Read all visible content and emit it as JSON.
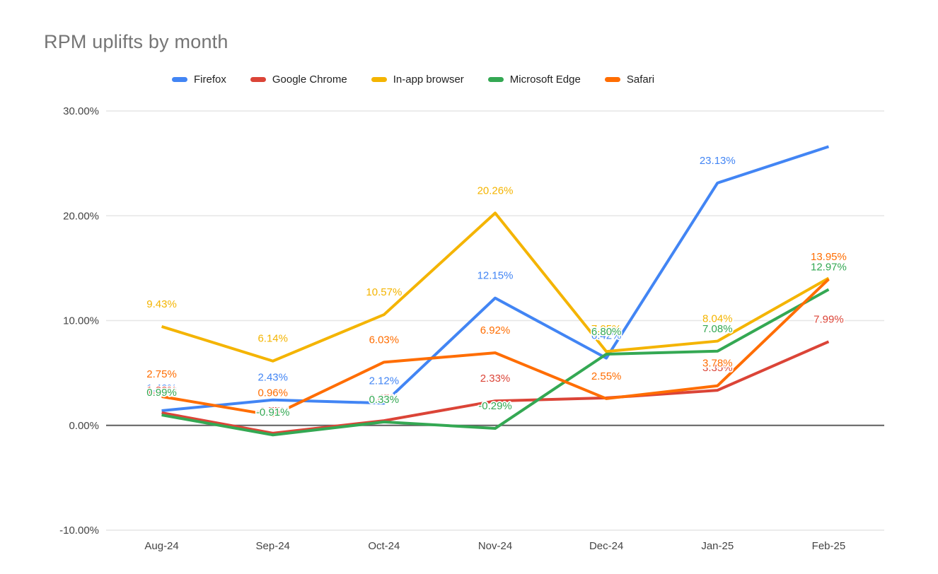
{
  "chart_data": {
    "type": "line",
    "title": "RPM uplifts by month",
    "categories": [
      "Aug-24",
      "Sep-24",
      "Oct-24",
      "Nov-24",
      "Dec-24",
      "Jan-25",
      "Feb-25"
    ],
    "series": [
      {
        "name": "Firefox",
        "color": "#4285F4",
        "values": [
          1.4,
          2.43,
          2.12,
          12.15,
          6.42,
          23.13,
          26.6
        ],
        "labels": [
          "1.40%",
          "2.43%",
          "2.12%",
          "12.15%",
          "6.42%",
          "23.13%",
          ""
        ]
      },
      {
        "name": "Google Chrome",
        "color": "#DB4437",
        "values": [
          1.2,
          -0.75,
          0.45,
          2.33,
          2.62,
          3.35,
          7.99
        ],
        "labels": [
          "1.20%",
          "-0.75%",
          "0.45%",
          "2.33%",
          "2.62%",
          "3.35%",
          "7.99%"
        ]
      },
      {
        "name": "In-app browser",
        "color": "#F4B400",
        "values": [
          9.43,
          6.14,
          10.57,
          20.26,
          7.05,
          8.04,
          14.05
        ],
        "labels": [
          "9.43%",
          "6.14%",
          "10.57%",
          "20.26%",
          "7.05%",
          "8.04%",
          "14.05%"
        ]
      },
      {
        "name": "Microsoft Edge",
        "color": "#34A853",
        "values": [
          0.99,
          -0.91,
          0.33,
          -0.29,
          6.8,
          7.08,
          12.97
        ],
        "labels": [
          "0.99%",
          "-0.91%",
          "0.33%",
          "-0.29%",
          "6.80%",
          "7.08%",
          "12.97%"
        ]
      },
      {
        "name": "Safari",
        "color": "#FF6D01",
        "values": [
          2.75,
          0.96,
          6.03,
          6.92,
          2.55,
          3.78,
          13.95
        ],
        "labels": [
          "2.75%",
          "0.96%",
          "6.03%",
          "6.92%",
          "2.55%",
          "3.78%",
          "13.95%"
        ]
      }
    ],
    "y_ticks": [
      {
        "value": 30,
        "label": "30.00%"
      },
      {
        "value": 20,
        "label": "20.00%"
      },
      {
        "value": 10,
        "label": "10.00%"
      },
      {
        "value": 0,
        "label": "0.00%"
      },
      {
        "value": -10,
        "label": "-10.00%"
      }
    ],
    "ylim": [
      -10,
      30
    ],
    "legend_position": "top",
    "grid": true,
    "colors": {
      "title_text": "#757575",
      "axis_text": "#444444",
      "legend_text": "#222222",
      "gridline": "#e6e6e6",
      "zero_line": "#5f5f5f",
      "background": "#ffffff"
    }
  }
}
